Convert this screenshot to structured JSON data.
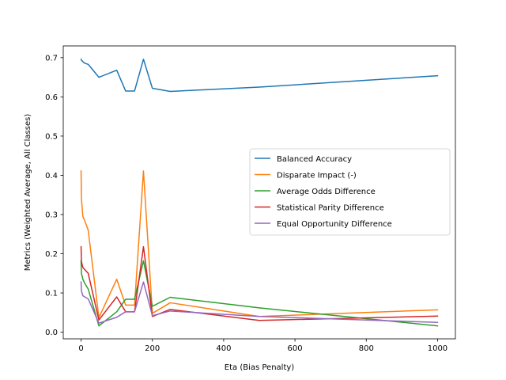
{
  "chart_data": {
    "type": "line",
    "title": "",
    "xlabel": "Eta (Bias Penalty)",
    "ylabel": "Metrics (Weighted Average, All Classes)",
    "xlim": [
      -50,
      1050
    ],
    "ylim": [
      -0.017,
      0.73
    ],
    "xticks": [
      0,
      200,
      400,
      600,
      800,
      1000
    ],
    "yticks": [
      0.0,
      0.1,
      0.2,
      0.3,
      0.4,
      0.5,
      0.6,
      0.7
    ],
    "xtick_labels": [
      "0",
      "200",
      "400",
      "600",
      "800",
      "1000"
    ],
    "ytick_labels": [
      "0.0",
      "0.1",
      "0.2",
      "0.3",
      "0.4",
      "0.5",
      "0.6",
      "0.7"
    ],
    "grid": false,
    "legend_position": "center-right",
    "x": [
      0,
      1,
      5,
      10,
      20,
      50,
      100,
      125,
      150,
      175,
      200,
      250,
      500,
      1000
    ],
    "series": [
      {
        "name": "Balanced Accuracy",
        "color": "#1f77b4",
        "values": [
          0.696,
          0.694,
          0.69,
          0.686,
          0.683,
          0.65,
          0.668,
          0.615,
          0.615,
          0.696,
          0.622,
          0.614,
          0.625,
          0.654
        ]
      },
      {
        "name": "Disparate Impact (-)",
        "color": "#ff7f0e",
        "values": [
          0.411,
          0.34,
          0.295,
          0.285,
          0.26,
          0.037,
          0.135,
          0.069,
          0.069,
          0.411,
          0.048,
          0.075,
          0.04,
          0.057
        ]
      },
      {
        "name": "Average Odds Difference",
        "color": "#2ca02c",
        "values": [
          0.182,
          0.15,
          0.135,
          0.125,
          0.11,
          0.016,
          0.052,
          0.084,
          0.084,
          0.182,
          0.066,
          0.089,
          0.062,
          0.016
        ]
      },
      {
        "name": "Statistical Parity Difference",
        "color": "#d62728",
        "values": [
          0.218,
          0.18,
          0.165,
          0.16,
          0.15,
          0.031,
          0.09,
          0.052,
          0.052,
          0.218,
          0.04,
          0.058,
          0.03,
          0.041
        ]
      },
      {
        "name": "Equal Opportunity Difference",
        "color": "#9467bd",
        "values": [
          0.128,
          0.105,
          0.093,
          0.09,
          0.085,
          0.023,
          0.038,
          0.052,
          0.052,
          0.128,
          0.042,
          0.054,
          0.04,
          0.025
        ]
      }
    ]
  }
}
